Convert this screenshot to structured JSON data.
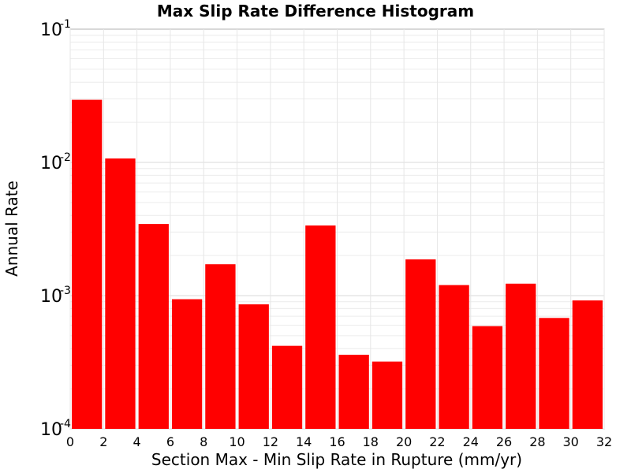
{
  "chart_data": {
    "type": "bar",
    "title": "Max Slip Rate Difference Histogram",
    "xlabel": "Section Max - Min Slip Rate in Rupture (mm/yr)",
    "ylabel": "Annual Rate",
    "yscale": "log",
    "ylim": [
      0.0001,
      0.1
    ],
    "xlim": [
      0,
      32
    ],
    "grid": true,
    "bin_width": 2,
    "x_ticks": [
      "0",
      "2",
      "4",
      "6",
      "8",
      "10",
      "12",
      "14",
      "16",
      "18",
      "20",
      "22",
      "24",
      "26",
      "28",
      "30",
      "32"
    ],
    "y_ticks": [
      {
        "base": "10",
        "exp": "-4"
      },
      {
        "base": "10",
        "exp": "-3"
      },
      {
        "base": "10",
        "exp": "-2"
      },
      {
        "base": "10",
        "exp": "-1"
      }
    ],
    "bar_color": "#ff0000",
    "bins": [
      {
        "x": 1,
        "value": 0.0295
      },
      {
        "x": 3,
        "value": 0.0107
      },
      {
        "x": 5,
        "value": 0.00345
      },
      {
        "x": 7,
        "value": 0.00094
      },
      {
        "x": 9,
        "value": 0.00172
      },
      {
        "x": 11,
        "value": 0.00086
      },
      {
        "x": 13,
        "value": 0.00042
      },
      {
        "x": 15,
        "value": 0.00336
      },
      {
        "x": 17,
        "value": 0.00036
      },
      {
        "x": 19,
        "value": 0.00032
      },
      {
        "x": 21,
        "value": 0.00187
      },
      {
        "x": 23,
        "value": 0.0012
      },
      {
        "x": 25,
        "value": 0.00059
      },
      {
        "x": 27,
        "value": 0.00123
      },
      {
        "x": 29,
        "value": 0.00068
      },
      {
        "x": 31,
        "value": 0.00092
      }
    ]
  }
}
